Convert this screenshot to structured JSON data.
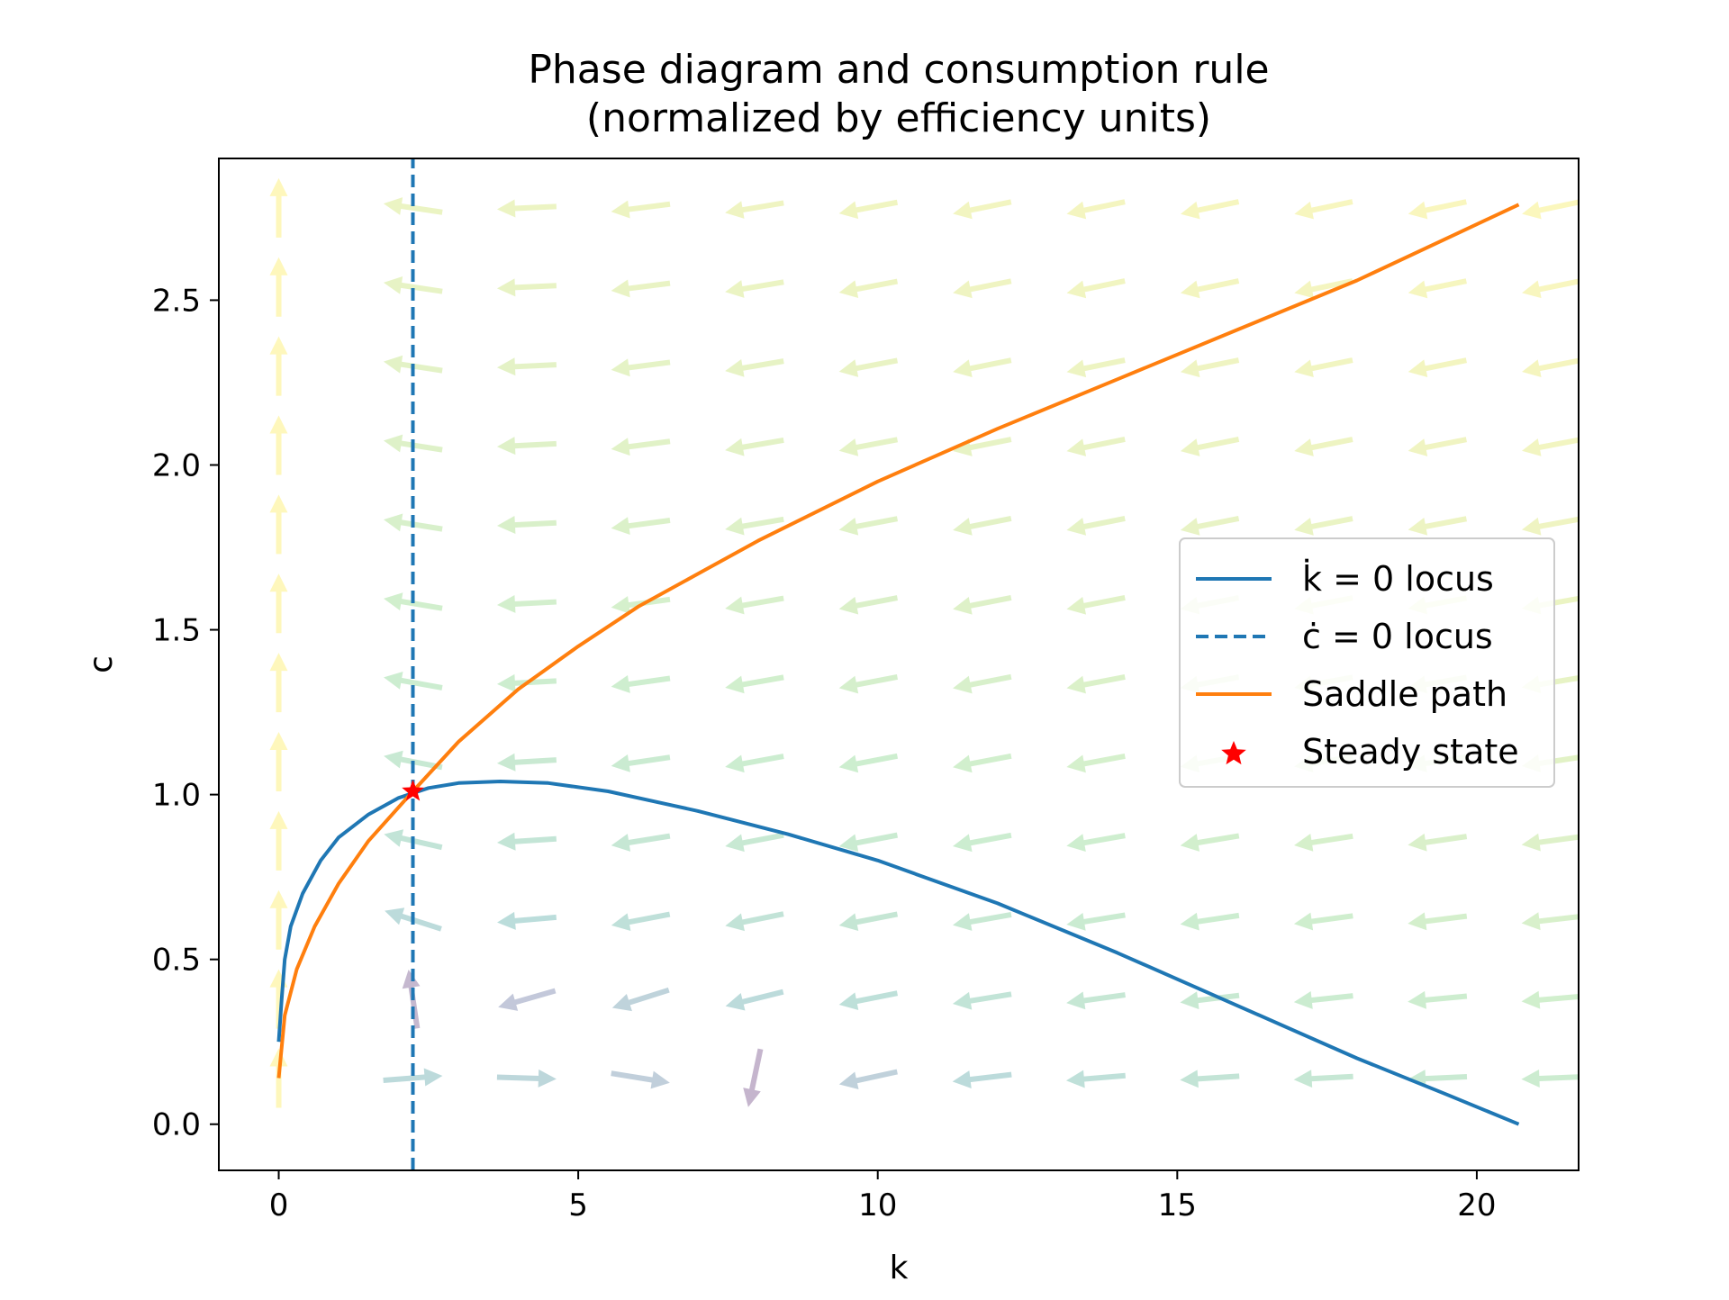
{
  "chart_data": {
    "type": "line",
    "title": "Phase diagram and consumption rule",
    "subtitle": "(normalized by efficiency units)",
    "xlabel": "k",
    "ylabel": "c",
    "xlim": [
      -1.0,
      21.7
    ],
    "ylim": [
      -0.14,
      2.93
    ],
    "xticks": [
      0,
      5,
      10,
      15,
      20
    ],
    "xtick_labels": [
      "0",
      "5",
      "10",
      "15",
      "20"
    ],
    "yticks": [
      0.0,
      0.5,
      1.0,
      1.5,
      2.0,
      2.5
    ],
    "ytick_labels": [
      "0.0",
      "0.5",
      "1.0",
      "1.5",
      "2.0",
      "2.5"
    ],
    "grid": false,
    "legend_position": "center-right",
    "series": [
      {
        "name": "k̇ = 0 locus",
        "style": "solid",
        "color": "#1f77b4",
        "x": [
          0.0,
          0.05,
          0.1,
          0.2,
          0.4,
          0.7,
          1.0,
          1.5,
          2.0,
          2.5,
          3.0,
          3.7,
          4.5,
          5.5,
          7.0,
          8.5,
          10.0,
          12.0,
          14.0,
          16.0,
          18.0,
          19.5,
          20.7
        ],
        "y": [
          0.25,
          0.38,
          0.5,
          0.6,
          0.7,
          0.8,
          0.87,
          0.94,
          0.99,
          1.02,
          1.035,
          1.04,
          1.035,
          1.01,
          0.95,
          0.88,
          0.8,
          0.67,
          0.52,
          0.36,
          0.2,
          0.09,
          0.0
        ]
      },
      {
        "name": "ċ = 0 locus",
        "style": "dashed",
        "color": "#1f77b4",
        "x": [
          2.24,
          2.24
        ],
        "y": [
          -0.14,
          2.93
        ]
      },
      {
        "name": "Saddle path",
        "style": "solid",
        "color": "#ff7f0e",
        "x": [
          0.0,
          0.1,
          0.3,
          0.6,
          1.0,
          1.5,
          2.24,
          3.0,
          4.0,
          5.0,
          6.0,
          8.0,
          10.0,
          12.0,
          14.0,
          16.0,
          18.0,
          20.7
        ],
        "y": [
          0.14,
          0.33,
          0.47,
          0.6,
          0.73,
          0.86,
          1.01,
          1.16,
          1.32,
          1.45,
          1.57,
          1.77,
          1.95,
          2.11,
          2.26,
          2.41,
          2.56,
          2.79
        ]
      },
      {
        "name": "Steady state",
        "style": "marker",
        "color": "#ff0000",
        "x": [
          2.24
        ],
        "y": [
          1.01
        ]
      }
    ],
    "quiver": {
      "x": [
        0.0,
        2.24,
        4.14,
        6.04,
        7.94,
        9.84,
        11.74,
        13.64,
        15.54,
        17.44,
        19.34,
        21.24
      ],
      "y": [
        0.14,
        0.38,
        0.62,
        0.86,
        1.1,
        1.34,
        1.58,
        1.82,
        2.06,
        2.3,
        2.54,
        2.78
      ]
    }
  }
}
